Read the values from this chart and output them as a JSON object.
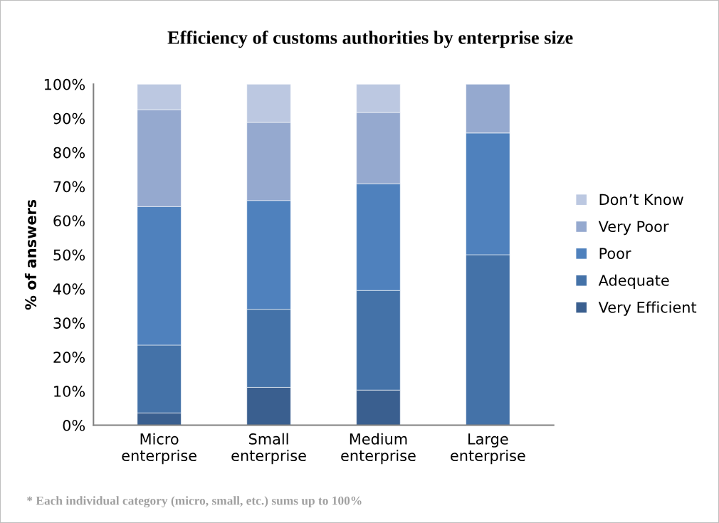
{
  "chart_data": {
    "type": "bar",
    "title": "Efficiency of customs authorities by enterprise size",
    "ylabel": "% of answers",
    "categories": [
      "Micro\nenterprise",
      "Small\nenterprise",
      "Medium\nenterprise",
      "Large\nenterprise"
    ],
    "stacked": true,
    "series": [
      {
        "name": "Very Efficient",
        "color": "#3a5f8f",
        "values": [
          3.6,
          11.1,
          10.3,
          0
        ]
      },
      {
        "name": "Adequate",
        "color": "#4472a8",
        "values": [
          19.9,
          22.9,
          29.2,
          50
        ]
      },
      {
        "name": "Poor",
        "color": "#4f81bd",
        "values": [
          40.6,
          31.9,
          31.3,
          35.7
        ]
      },
      {
        "name": "Very Poor",
        "color": "#95a9cf",
        "values": [
          28.4,
          22.9,
          20.9,
          14.3
        ]
      },
      {
        "name": "Don’t Know",
        "color": "#bcc8e1",
        "values": [
          7.5,
          11.2,
          8.3,
          0
        ]
      }
    ],
    "ylim": [
      0,
      100
    ],
    "yticks": [
      {
        "value": 0,
        "label": "0%"
      },
      {
        "value": 10,
        "label": "10%"
      },
      {
        "value": 20,
        "label": "20%"
      },
      {
        "value": 30,
        "label": "30%"
      },
      {
        "value": 40,
        "label": "40%"
      },
      {
        "value": 50,
        "label": "50%"
      },
      {
        "value": 60,
        "label": "60%"
      },
      {
        "value": 70,
        "label": "70%"
      },
      {
        "value": 80,
        "label": "80%"
      },
      {
        "value": 90,
        "label": "90%"
      },
      {
        "value": 100,
        "label": "100%"
      }
    ],
    "legend": "right",
    "annotations": [
      "* Each individual category (micro, small, etc.) sums up to 100%"
    ]
  }
}
